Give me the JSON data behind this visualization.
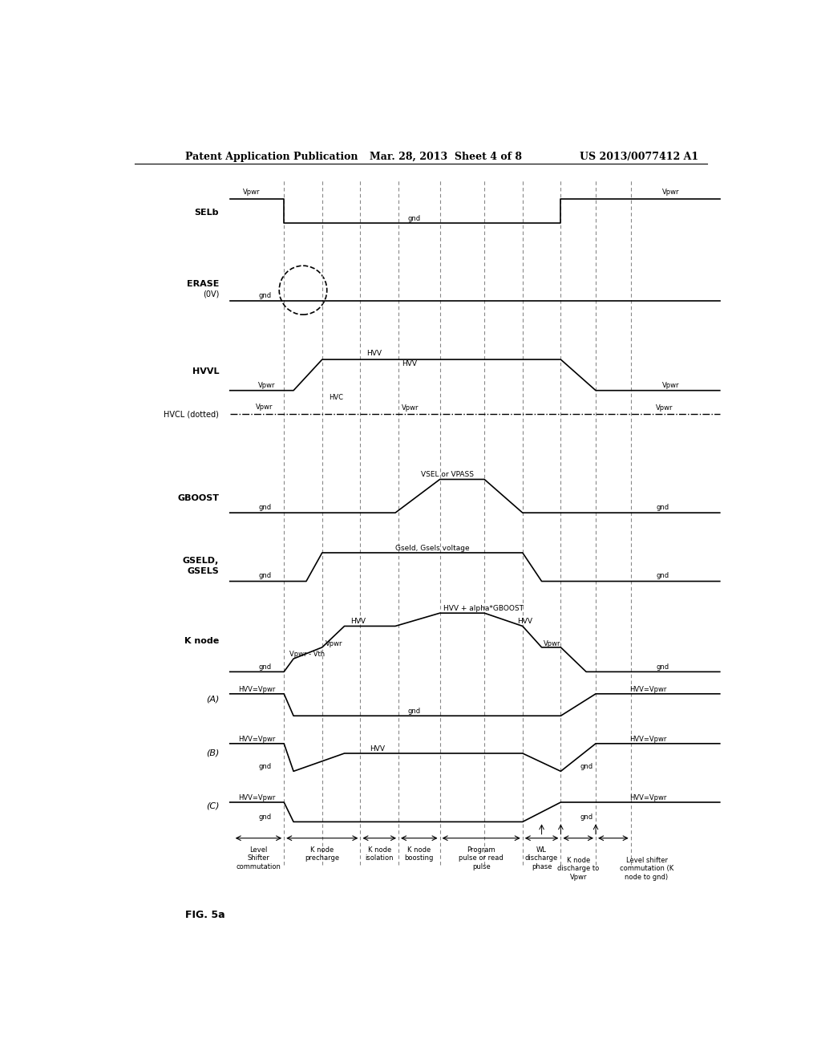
{
  "header_left": "Patent Application Publication",
  "header_mid": "Mar. 28, 2013  Sheet 4 of 8",
  "header_right": "US 2013/0077412 A1",
  "fig_label": "FIG. 5a",
  "bg_color": "#ffffff",
  "vline_x": [
    0.285,
    0.345,
    0.405,
    0.465,
    0.53,
    0.6,
    0.66,
    0.72,
    0.775,
    0.83
  ]
}
